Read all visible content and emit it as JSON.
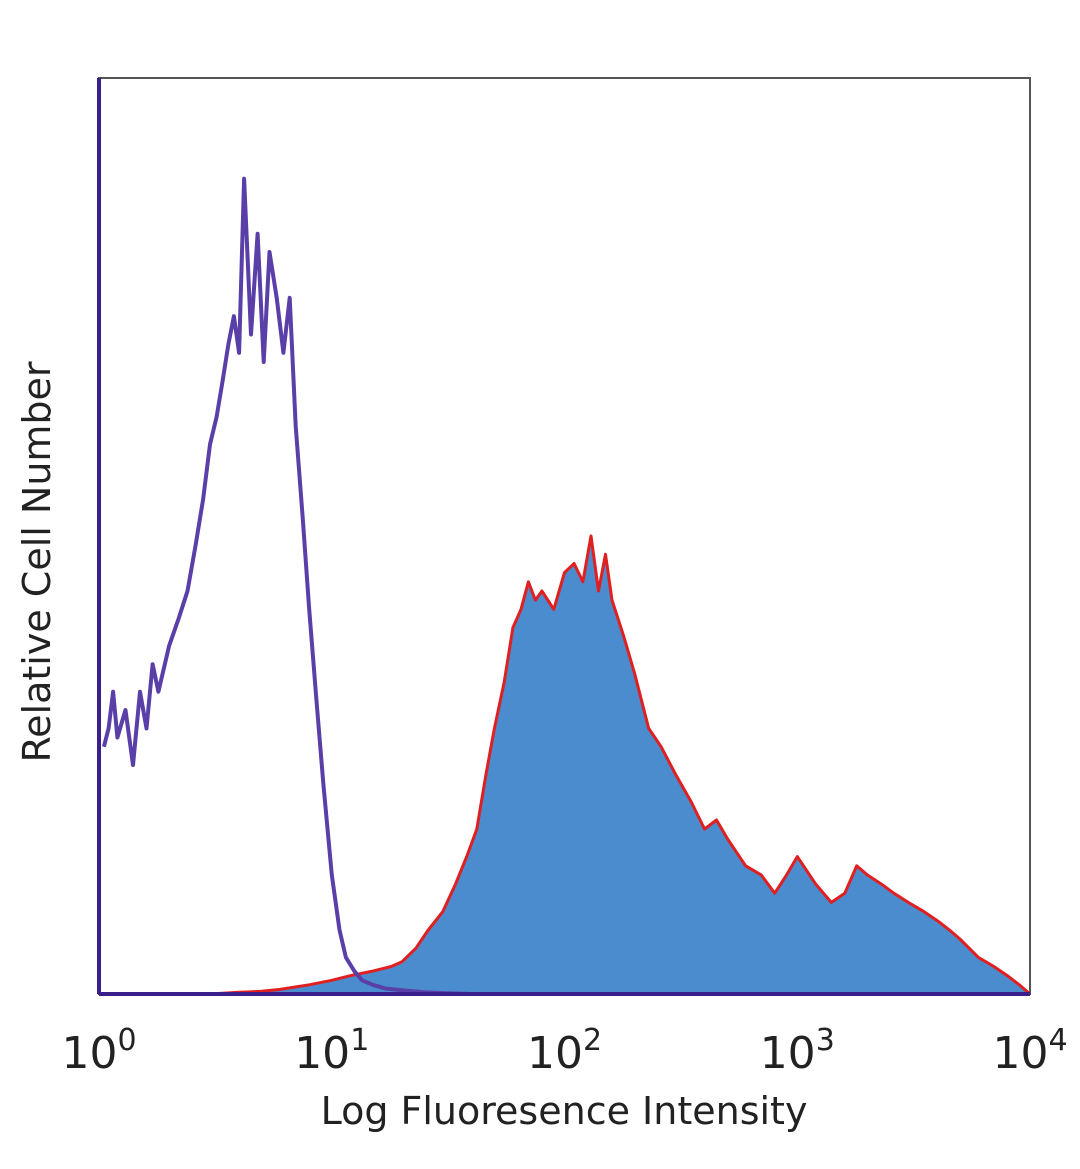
{
  "chart_data": {
    "type": "area",
    "title": "",
    "xlabel": "Log Fluoresence Intensity",
    "ylabel": "Relative Cell Number",
    "x_scale": "log",
    "xlim": [
      1,
      10000
    ],
    "ylim": [
      0,
      100
    ],
    "grid": false,
    "legend": "none",
    "x_ticks": [
      {
        "base": "10",
        "exp": "0"
      },
      {
        "base": "10",
        "exp": "1"
      },
      {
        "base": "10",
        "exp": "2"
      },
      {
        "base": "10",
        "exp": "3"
      },
      {
        "base": "10",
        "exp": "4"
      }
    ],
    "series": [
      {
        "style": "line",
        "color": "#5b3fa8",
        "x": [
          1.05,
          1.1,
          1.15,
          1.2,
          1.3,
          1.4,
          1.5,
          1.6,
          1.7,
          1.8,
          2.0,
          2.2,
          2.4,
          2.6,
          2.8,
          3.0,
          3.2,
          3.4,
          3.6,
          3.8,
          4.0,
          4.2,
          4.5,
          4.8,
          5.1,
          5.4,
          5.8,
          6.2,
          6.6,
          7.0,
          7.5,
          8.0,
          8.6,
          9.2,
          10.0,
          10.8,
          11.5,
          12.5,
          13.5,
          15,
          17,
          20,
          25,
          30,
          40,
          60,
          100,
          200,
          500,
          1000,
          10000
        ],
        "values": [
          27,
          29,
          33,
          28,
          31,
          25,
          33,
          29,
          36,
          33,
          38,
          41,
          44,
          49,
          54,
          60,
          63,
          67,
          71,
          74,
          70,
          89,
          72,
          83,
          69,
          81,
          76,
          70,
          76,
          62,
          52,
          42,
          32,
          23,
          13,
          7,
          4,
          2.5,
          1.5,
          1,
          0.6,
          0.4,
          0.2,
          0.1,
          0,
          0,
          0,
          0,
          0,
          0,
          0
        ]
      },
      {
        "style": "filled",
        "color": "#4a8cce",
        "edge_color": "#e02020",
        "x": [
          1,
          2,
          3,
          4,
          5,
          6,
          8,
          10,
          12,
          15,
          18,
          20,
          23,
          26,
          30,
          34,
          38,
          42,
          46,
          50,
          55,
          60,
          65,
          70,
          75,
          80,
          90,
          100,
          110,
          120,
          130,
          140,
          150,
          160,
          180,
          200,
          230,
          260,
          300,
          350,
          400,
          450,
          500,
          600,
          700,
          800,
          900,
          1000,
          1200,
          1400,
          1600,
          1800,
          2000,
          2300,
          2600,
          3000,
          3500,
          4000,
          4500,
          5000,
          6000,
          7000,
          8000,
          9000,
          10000
        ],
        "values": [
          0,
          0,
          0,
          0.2,
          0.3,
          0.5,
          1,
          1.5,
          2,
          2.5,
          3,
          3.5,
          5,
          7,
          9,
          12,
          15,
          18,
          24,
          29,
          34,
          40,
          42,
          45,
          43,
          44,
          42,
          46,
          47,
          45,
          50,
          44,
          48,
          43,
          39,
          35,
          29,
          27,
          24,
          21,
          18,
          19,
          17,
          14,
          13,
          11,
          13,
          15,
          12,
          10,
          11,
          14,
          13,
          12,
          11,
          10,
          9,
          8,
          7,
          6,
          4,
          3,
          2,
          1,
          0
        ]
      }
    ]
  }
}
